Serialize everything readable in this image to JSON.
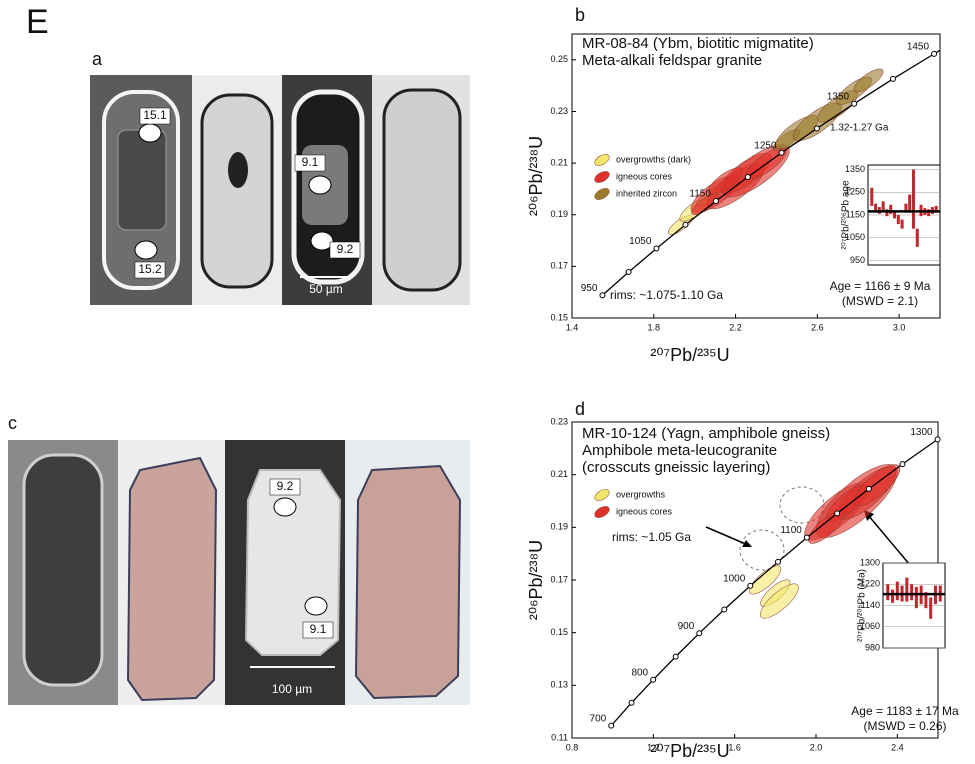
{
  "figure_label": "E",
  "panels": {
    "a": {
      "label": "a",
      "spots": [
        "15.1",
        "15.2",
        "9.1",
        "9.2"
      ],
      "scale_bar": "50 µm"
    },
    "c": {
      "label": "c",
      "spots": [
        "9.2",
        "9.1"
      ],
      "scale_bar": "100 µm"
    }
  },
  "chart_data": [
    {
      "type": "concordia",
      "panel_label": "b",
      "title": "MR-08-84  (Ybm, biotitic migmatite)",
      "subtitle": [
        "Meta-alkali feldspar granite"
      ],
      "x_label": "²⁰⁷Pb/²³⁵U",
      "y_label": "²⁰⁶Pb/²³⁸U",
      "xlim": [
        1.4,
        3.2
      ],
      "xticks": [
        1.4,
        1.8,
        2.2,
        2.6,
        {
          "value": 3,
          "label": "3.0"
        }
      ],
      "ylim": [
        0.15,
        0.26
      ],
      "yticks": [
        0.15,
        0.17,
        0.19,
        0.21,
        0.23,
        0.25
      ],
      "concordia": {
        "x": [
          1.549,
          1.677,
          1.813,
          1.955,
          2.104,
          2.26,
          2.425,
          2.598,
          2.78,
          2.97,
          3.171
        ],
        "y": [
          0.1588,
          0.1678,
          0.1769,
          0.1861,
          0.1953,
          0.2046,
          0.214,
          0.2234,
          0.233,
          0.2426,
          0.2523
        ],
        "ages": [
          950,
          null,
          1050,
          null,
          1150,
          null,
          1250,
          null,
          1350,
          null,
          1450
        ]
      },
      "series": [
        {
          "name": "overgrowths (dark)",
          "color": "#f2e66a",
          "x": [
            1.93,
            2.0,
            2.07
          ],
          "y": [
            0.186,
            0.192,
            0.197
          ],
          "x_err": [
            0.05,
            0.06,
            0.05
          ],
          "y_err": [
            0.004,
            0.005,
            0.004
          ]
        },
        {
          "name": "igneous cores",
          "color": "#e0302a",
          "x": [
            2.1,
            2.2,
            2.25,
            2.3,
            2.15,
            2.35,
            2.05
          ],
          "y": [
            0.198,
            0.201,
            0.206,
            0.207,
            0.203,
            0.21,
            0.194
          ],
          "x_err": [
            0.12,
            0.15,
            0.13,
            0.18,
            0.08,
            0.1,
            0.06
          ],
          "y_err": [
            0.006,
            0.006,
            0.006,
            0.006,
            0.005,
            0.005,
            0.004
          ]
        },
        {
          "name": "inherited zircon",
          "color": "#9a7a2c",
          "x": [
            2.45,
            2.5,
            2.6,
            2.7,
            2.78,
            2.85
          ],
          "y": [
            0.219,
            0.222,
            0.226,
            0.232,
            0.238,
            0.242
          ],
          "x_err": [
            0.06,
            0.1,
            0.12,
            0.1,
            0.09,
            0.07
          ],
          "y_err": [
            0.004,
            0.006,
            0.006,
            0.005,
            0.004,
            0.004
          ]
        }
      ],
      "annotations": [
        "rims: ~1.075-1.10 Ga",
        "1.32-1.27 Ga"
      ],
      "inset": {
        "y_label": "²⁰⁷Pb/²⁰⁶Pb age",
        "ylim": [
          930,
          1370
        ],
        "yticks": [
          950,
          1050,
          1150,
          1250,
          1350
        ],
        "values": [
          1230,
          1180,
          1170,
          1190,
          1160,
          1175,
          1150,
          1130,
          1110,
          1180,
          1200,
          1220,
          1050,
          1170,
          1165,
          1160,
          1170,
          1175
        ],
        "errors": [
          40,
          20,
          15,
          20,
          15,
          20,
          15,
          20,
          20,
          20,
          40,
          130,
          40,
          25,
          15,
          15,
          15,
          15
        ],
        "color": "#c0272d",
        "mean": 1166,
        "age_text": "Age = 1166 ± 9 Ma",
        "mswd_text": "(MSWD = 2.1)"
      }
    },
    {
      "type": "concordia",
      "panel_label": "d",
      "title": "MR-10-124  (Yagn, amphibole gneiss)",
      "subtitle": [
        "Amphibole meta-leucogranite",
        "(crosscuts gneissic layering)"
      ],
      "x_label": "²⁰⁷Pb/²³⁵U",
      "y_label": "²⁰⁶Pb/²³⁸U",
      "xlim": [
        0.8,
        2.6
      ],
      "xticks": [
        0.8,
        1.2,
        1.6,
        {
          "value": 2,
          "label": "2.0"
        },
        2.4
      ],
      "ylim": [
        0.11,
        0.23
      ],
      "yticks": [
        0.11,
        0.13,
        0.15,
        0.17,
        0.19,
        0.21,
        0.23
      ],
      "concordia": {
        "x": [
          0.993,
          1.093,
          1.199,
          1.31,
          1.426,
          1.549,
          1.677,
          1.813,
          1.955,
          2.104,
          2.26,
          2.425,
          2.598
        ],
        "y": [
          0.1147,
          0.1234,
          0.1321,
          0.1409,
          0.1498,
          0.1588,
          0.1678,
          0.1769,
          0.1861,
          0.1953,
          0.2046,
          0.214,
          0.2234
        ],
        "ages": [
          700,
          null,
          800,
          null,
          900,
          null,
          1000,
          null,
          1100,
          null,
          null,
          null,
          1300
        ]
      },
      "series": [
        {
          "name": "overgrowths",
          "color": "#f2e66a",
          "x": [
            1.75,
            1.8,
            1.82
          ],
          "y": [
            0.17,
            0.165,
            0.162
          ],
          "x_err": [
            0.06,
            0.05,
            0.06
          ],
          "y_err": [
            0.006,
            0.006,
            0.008
          ]
        },
        {
          "name": "igneous cores",
          "color": "#e0302a",
          "x": [
            2.1,
            2.2,
            2.25,
            2.15,
            2.3,
            2.05
          ],
          "y": [
            0.196,
            0.2,
            0.203,
            0.199,
            0.206,
            0.19
          ],
          "x_err": [
            0.15,
            0.2,
            0.15,
            0.1,
            0.12,
            0.08
          ],
          "y_err": [
            0.01,
            0.012,
            0.008,
            0.006,
            0.006,
            0.006
          ]
        }
      ],
      "annotations": [
        "rims: ~1.05 Ga"
      ],
      "inset": {
        "y_label": "²⁰⁷Pb/²⁰⁶Pb (Ma)",
        "ylim": [
          980,
          1300
        ],
        "yticks": [
          980,
          1060,
          1140,
          1220,
          1300
        ],
        "values": [
          1190,
          1175,
          1195,
          1185,
          1200,
          1190,
          1170,
          1180,
          1160,
          1130,
          1180,
          1185
        ],
        "errors": [
          30,
          25,
          35,
          30,
          45,
          30,
          40,
          35,
          30,
          40,
          35,
          30
        ],
        "color": "#c0272d",
        "mean": 1183,
        "age_text": "Age = 1183 ± 17 Ma",
        "mswd_text": "(MSWD = 0.26)"
      }
    }
  ]
}
